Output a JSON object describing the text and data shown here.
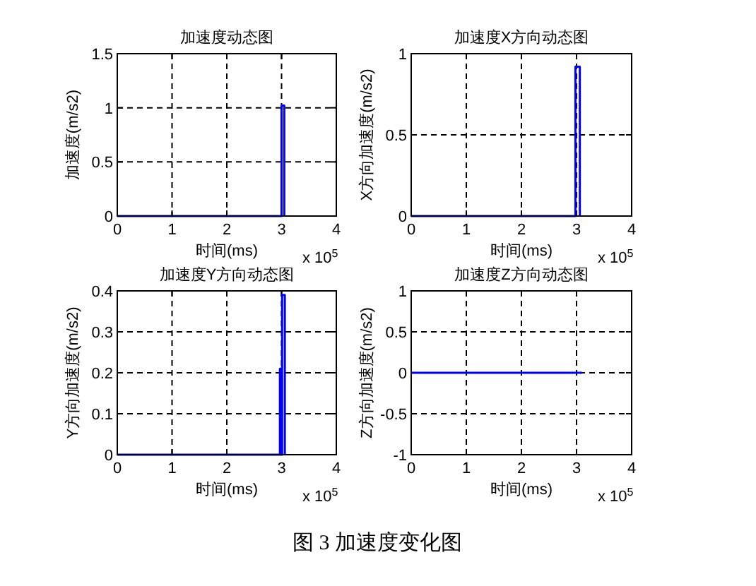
{
  "chart_data": [
    {
      "type": "line",
      "title": "加速度动态图",
      "xlabel": "时间(ms)",
      "ylabel": "加速度(m/s2)",
      "x": [
        0,
        3,
        3,
        3.05,
        3.05
      ],
      "series": [
        {
          "color": "#0000ff",
          "values": [
            0,
            0,
            1.02,
            1.02,
            0
          ]
        }
      ],
      "xlim": [
        0,
        4
      ],
      "xticks": [
        0,
        1,
        2,
        3,
        4
      ],
      "ylim": [
        0,
        1.5
      ],
      "yticks": [
        0,
        0.5,
        1,
        1.5
      ],
      "grid": true,
      "annotations": [
        "x 10$^{5}$"
      ]
    },
    {
      "type": "line",
      "title": "加速度X方向动态图",
      "xlabel": "时间(ms)",
      "ylabel": "X方向加速度(m/s2)",
      "x": [
        0,
        2.98,
        2.98,
        3.06,
        3.06
      ],
      "series": [
        {
          "color": "#0000ff",
          "values": [
            0,
            0,
            0.92,
            0.92,
            0
          ]
        }
      ],
      "xlim": [
        0,
        4
      ],
      "xticks": [
        0,
        1,
        2,
        3,
        4
      ],
      "ylim": [
        0,
        1
      ],
      "yticks": [
        0,
        0.5,
        1
      ],
      "grid": true,
      "annotations": [
        "x 10$^{5}$"
      ]
    },
    {
      "type": "line",
      "title": "加速度Y方向动态图",
      "xlabel": "时间(ms)",
      "ylabel": "Y方向加速度(m/s2)",
      "x": [
        0,
        2.97,
        2.97,
        2.99,
        2.99,
        3.01,
        3.01,
        3.06,
        3.06
      ],
      "series": [
        {
          "color": "#0000ff",
          "values": [
            0,
            0,
            0.21,
            0.21,
            0,
            0,
            0.39,
            0.39,
            0
          ]
        }
      ],
      "xlim": [
        0,
        4
      ],
      "xticks": [
        0,
        1,
        2,
        3,
        4
      ],
      "ylim": [
        0,
        0.4
      ],
      "yticks": [
        0,
        0.1,
        0.2,
        0.3,
        0.4
      ],
      "grid": true,
      "annotations": [
        "x 10$^{5}$"
      ]
    },
    {
      "type": "line",
      "title": "加速度Z方向动态图",
      "xlabel": "时间(ms)",
      "ylabel": "Z方向加速度(m/s2)",
      "x": [
        0,
        3.1
      ],
      "series": [
        {
          "color": "#0000ff",
          "values": [
            0,
            0
          ]
        }
      ],
      "xlim": [
        0,
        4
      ],
      "xticks": [
        0,
        1,
        2,
        3,
        4
      ],
      "ylim": [
        -1,
        1
      ],
      "yticks": [
        -1,
        -0.5,
        0,
        0.5,
        1
      ],
      "grid": true,
      "annotations": [
        "x 10$^{5}$",
        "图 3  加速度变化图"
      ]
    }
  ]
}
